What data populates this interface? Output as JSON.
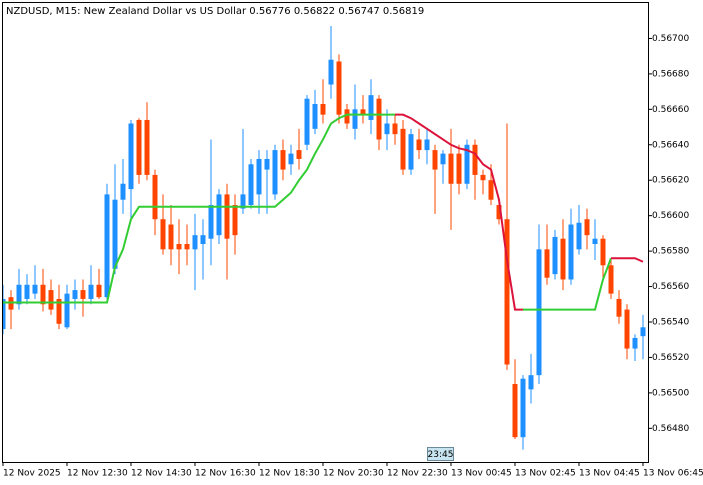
{
  "chart_data": {
    "type": "candlestick",
    "title": "NZDUSD, M15:  New Zealand Dollar vs US Dollar  0.56776 0.56822 0.56747 0.56819",
    "time_marker": "23:45",
    "up_color": "#1e90ff",
    "down_color": "#ff4500",
    "categories": [
      "12 Nov 2025",
      null,
      null,
      null,
      null,
      null,
      null,
      null,
      "12 Nov 12:30",
      null,
      null,
      null,
      null,
      null,
      null,
      null,
      "12 Nov 14:30",
      null,
      null,
      null,
      null,
      null,
      null,
      null,
      "12 Nov 16:30",
      null,
      null,
      null,
      null,
      null,
      null,
      null,
      "12 Nov 18:30",
      null,
      null,
      null,
      null,
      null,
      null,
      null,
      "12 Nov 20:30",
      null,
      null,
      null,
      null,
      null,
      null,
      null,
      "12 Nov 22:30",
      null,
      null,
      null,
      null,
      null,
      null,
      null,
      "13 Nov 00:45",
      null,
      null,
      null,
      null,
      null,
      null,
      null,
      "13 Nov 02:45",
      null,
      null,
      null,
      null,
      null,
      null,
      null,
      "13 Nov 04:45",
      null,
      null,
      null,
      null,
      null,
      null,
      null,
      "13 Nov 06:45"
    ],
    "open": [
      0.56536,
      0.56554,
      0.5655,
      0.56553,
      0.56556,
      0.56561,
      0.56558,
      0.56553,
      0.56537,
      0.56553,
      0.56558,
      0.56553,
      0.56561,
      0.56554,
      0.5657,
      0.56609,
      0.56615,
      0.56654,
      0.56654,
      0.56623,
      0.56598,
      0.56595,
      0.56584,
      0.56584,
      0.56581,
      0.56584,
      0.56587,
      0.56589,
      0.56612,
      0.56606,
      0.56604,
      0.56606,
      0.56612,
      0.56626,
      0.56612,
      0.56637,
      0.56629,
      0.56637,
      0.5664,
      0.56649,
      0.56663,
      0.56674,
      0.56687,
      0.5666,
      0.56649,
      0.5666,
      0.56654,
      0.56666,
      0.56646,
      0.56652,
      0.56649,
      0.56626,
      0.56643,
      0.56637,
      0.56637,
      0.56629,
      0.56635,
      0.56635,
      0.56618,
      0.5664,
      0.56623,
      0.5662,
      0.56606,
      0.56598,
      0.56505,
      0.56475,
      0.56502,
      0.5651,
      0.56581,
      0.56567,
      0.56587,
      0.56564,
      0.56581,
      0.56598,
      0.56584,
      0.56587,
      0.56572,
      0.56553,
      0.56547,
      0.56525,
      0.56532
    ],
    "high": [
      0.56561,
      0.56558,
      0.5657,
      0.56567,
      0.56572,
      0.5657,
      0.56564,
      0.56561,
      0.56561,
      0.56564,
      0.56564,
      0.56572,
      0.5657,
      0.56618,
      0.56629,
      0.56632,
      0.56654,
      0.56655,
      0.56664,
      0.56626,
      0.56612,
      0.56606,
      0.56598,
      0.56595,
      0.56601,
      0.56598,
      0.56643,
      0.56615,
      0.56618,
      0.56612,
      0.56649,
      0.56632,
      0.56637,
      0.56637,
      0.5664,
      0.56643,
      0.5664,
      0.56649,
      0.56668,
      0.56671,
      0.56677,
      0.56707,
      0.56691,
      0.56663,
      0.56674,
      0.56668,
      0.56677,
      0.56668,
      0.5666,
      0.56657,
      0.56654,
      0.56649,
      0.56649,
      0.56649,
      0.5664,
      0.56637,
      0.56649,
      0.5664,
      0.56643,
      0.56643,
      0.56626,
      0.56629,
      0.56609,
      0.56652,
      0.56519,
      0.5651,
      0.56522,
      0.56595,
      0.56595,
      0.56592,
      0.56598,
      0.56604,
      0.56606,
      0.56604,
      0.56598,
      0.56589,
      0.56575,
      0.56558,
      0.5655,
      0.56533,
      0.56544
    ],
    "low": [
      0.56533,
      0.56536,
      0.56547,
      0.5655,
      0.56553,
      0.56546,
      0.56544,
      0.56536,
      0.56536,
      0.56547,
      0.56543,
      0.5655,
      0.56553,
      0.56553,
      0.56567,
      0.56601,
      0.56598,
      0.56618,
      0.5662,
      0.56589,
      0.56578,
      0.56572,
      0.56567,
      0.56572,
      0.56558,
      0.56564,
      0.56572,
      0.56584,
      0.56564,
      0.56578,
      0.56601,
      0.56604,
      0.56601,
      0.56601,
      0.56609,
      0.5662,
      0.56623,
      0.56626,
      0.56637,
      0.56646,
      0.56652,
      0.56666,
      0.56652,
      0.56649,
      0.56643,
      0.56652,
      0.56646,
      0.56637,
      0.56637,
      0.5664,
      0.56623,
      0.56623,
      0.56632,
      0.56629,
      0.56601,
      0.56618,
      0.56592,
      0.56612,
      0.56615,
      0.56609,
      0.56612,
      0.56606,
      0.56595,
      0.56513,
      0.56474,
      0.56468,
      0.56494,
      0.56505,
      0.56561,
      0.56564,
      0.56558,
      0.56561,
      0.56578,
      0.56581,
      0.56575,
      0.56564,
      0.56553,
      0.56539,
      0.56519,
      0.56518,
      0.56519
    ],
    "close": [
      0.56553,
      0.56547,
      0.56561,
      0.56561,
      0.56561,
      0.5655,
      0.56547,
      0.56539,
      0.56556,
      0.56558,
      0.56553,
      0.56561,
      0.56554,
      0.56612,
      0.56609,
      0.56618,
      0.56652,
      0.56623,
      0.56623,
      0.56598,
      0.56581,
      0.56581,
      0.56581,
      0.56581,
      0.56589,
      0.56589,
      0.56606,
      0.56612,
      0.56587,
      0.56589,
      0.56612,
      0.56629,
      0.56632,
      0.56632,
      0.56637,
      0.56626,
      0.56635,
      0.56632,
      0.56666,
      0.56663,
      0.56657,
      0.56688,
      0.56657,
      0.56652,
      0.5666,
      0.56657,
      0.56668,
      0.56643,
      0.56652,
      0.56646,
      0.56626,
      0.56646,
      0.56637,
      0.56643,
      0.56626,
      0.56635,
      0.56618,
      0.56618,
      0.5664,
      0.56623,
      0.5662,
      0.56609,
      0.56598,
      0.56516,
      0.56475,
      0.56508,
      0.5651,
      0.56581,
      0.56565,
      0.56588,
      0.56564,
      0.56595,
      0.56596,
      0.56589,
      0.56587,
      0.56572,
      0.56556,
      0.56543,
      0.56525,
      0.56531,
      0.56537
    ],
    "lines": [
      {
        "color": "#32cd32",
        "values": [
          0.56551,
          0.56551,
          0.56551,
          0.56551,
          0.56551,
          0.56551,
          0.56551,
          0.56551,
          0.56551,
          0.56551,
          0.56551,
          0.56551,
          0.56551,
          0.56551,
          0.56571,
          0.56581,
          0.56598,
          0.56605,
          0.56605,
          0.56605,
          0.56605,
          0.56605,
          0.56605,
          0.56605,
          0.56605,
          0.56605,
          0.56605,
          0.56605,
          0.56605,
          0.56605,
          0.56605,
          0.56605,
          0.56605,
          0.56605,
          0.56605,
          0.56609,
          0.56613,
          0.5662,
          0.56626,
          0.56635,
          0.56643,
          0.56652,
          0.56655,
          0.56657,
          0.56657,
          0.56657,
          0.56657,
          0.56657,
          0.56657,
          0.56657,
          null,
          null,
          null,
          null,
          null,
          null,
          null,
          null,
          null,
          null,
          null,
          null,
          null,
          null,
          null,
          0.56547,
          0.56547,
          0.56547,
          0.56547,
          0.56547,
          0.56547,
          0.56547,
          0.56547,
          0.56547,
          0.56547,
          0.56564,
          0.56576,
          null,
          null,
          null,
          null
        ]
      },
      {
        "color": "#dc143c",
        "values": [
          null,
          null,
          null,
          null,
          null,
          null,
          null,
          null,
          null,
          null,
          null,
          null,
          null,
          null,
          null,
          null,
          null,
          null,
          null,
          null,
          null,
          null,
          null,
          null,
          null,
          null,
          null,
          null,
          null,
          null,
          null,
          null,
          null,
          null,
          null,
          null,
          null,
          null,
          null,
          null,
          null,
          null,
          null,
          null,
          null,
          null,
          null,
          null,
          null,
          0.56657,
          0.56657,
          0.56655,
          0.56652,
          0.56649,
          0.56646,
          0.56643,
          0.5664,
          0.56638,
          0.56637,
          0.56635,
          0.56629,
          0.56626,
          0.56609,
          0.56575,
          0.56547,
          0.56547,
          null,
          null,
          null,
          null,
          null,
          null,
          null,
          null,
          null,
          null,
          0.56576,
          0.56576,
          0.56576,
          0.56576,
          0.56574
        ]
      }
    ],
    "ylim": [
      0.56461,
      0.5672
    ],
    "yticks": [
      {
        "value": 0.5648,
        "label": "0.56480"
      },
      {
        "value": 0.565,
        "label": "0.56500"
      },
      {
        "value": 0.5652,
        "label": "0.56520"
      },
      {
        "value": 0.5654,
        "label": "0.56540"
      },
      {
        "value": 0.5656,
        "label": "0.56560"
      },
      {
        "value": 0.5658,
        "label": "0.56580"
      },
      {
        "value": 0.566,
        "label": "0.56600"
      },
      {
        "value": 0.5662,
        "label": "0.56620"
      },
      {
        "value": 0.5664,
        "label": "0.56640"
      },
      {
        "value": 0.5666,
        "label": "0.56660"
      },
      {
        "value": 0.5668,
        "label": "0.56680"
      },
      {
        "value": 0.567,
        "label": "0.56700"
      }
    ],
    "grid": false
  }
}
